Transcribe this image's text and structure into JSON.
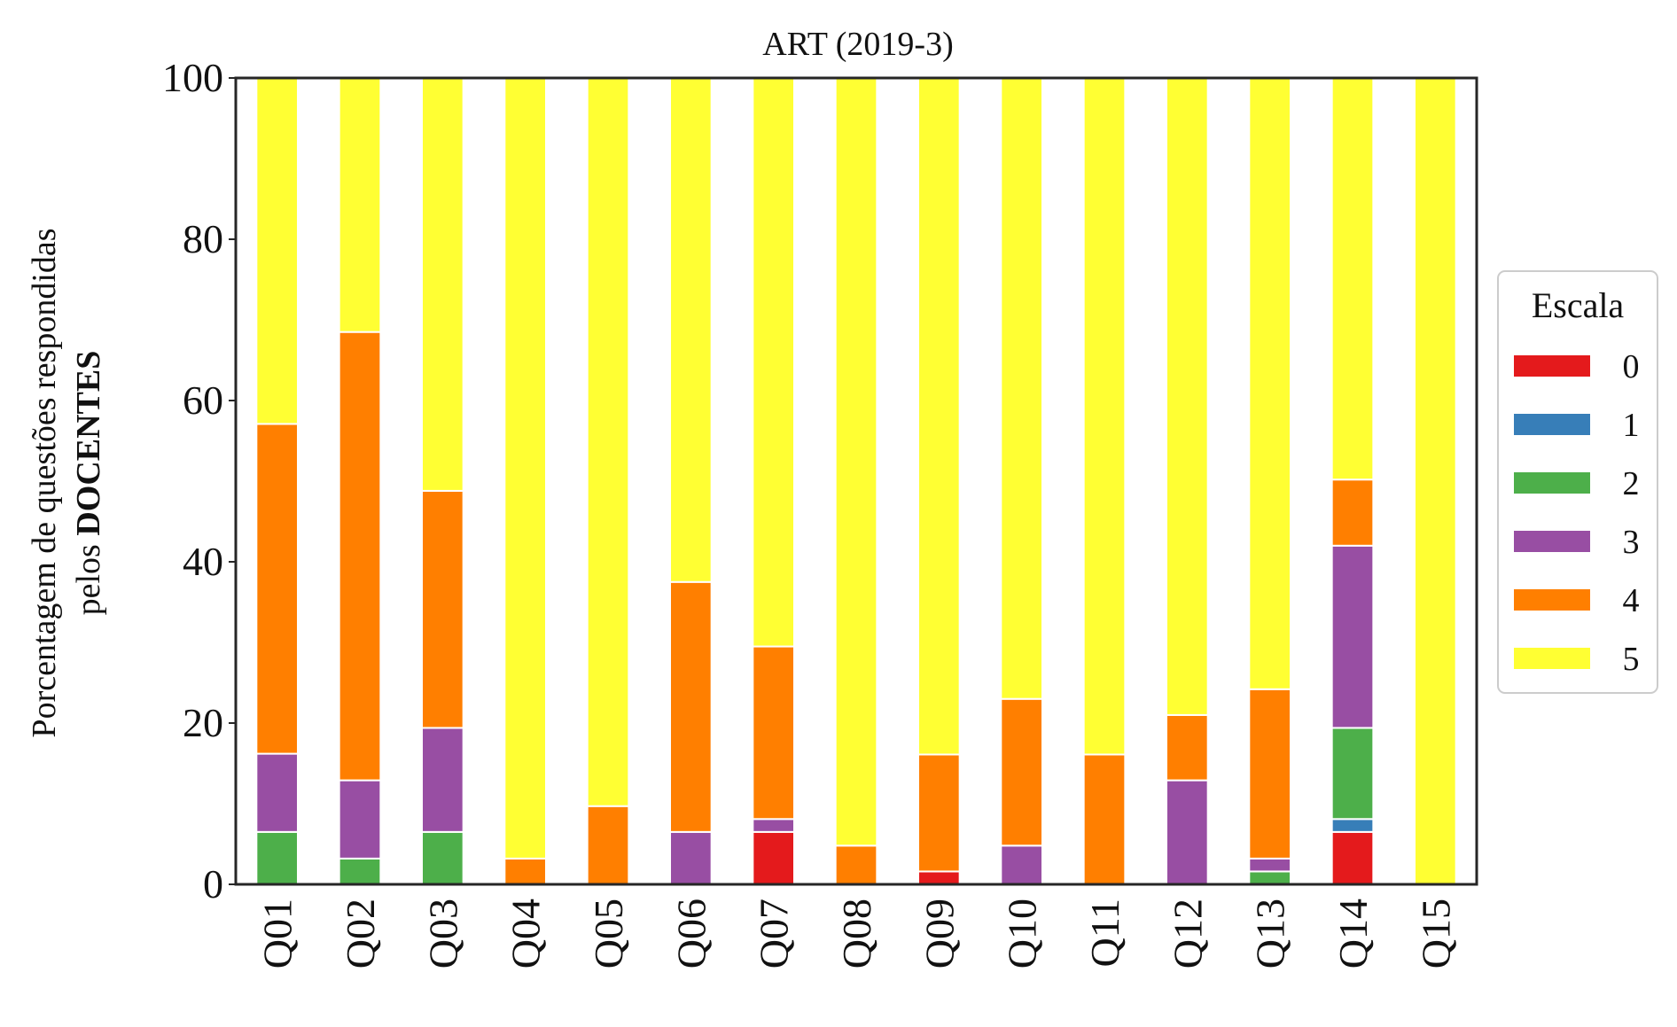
{
  "chart_data": {
    "type": "bar",
    "stacked": true,
    "title": "ART (2019-3)",
    "ylabel_line1": "Porcentagem de questões respondidas",
    "ylabel_line2_prefix": "pelos ",
    "ylabel_line2_bold": "DOCENTES",
    "xlabel": "",
    "ylim": [
      0,
      100
    ],
    "yticks": [
      0,
      20,
      40,
      60,
      80,
      100
    ],
    "grid": false,
    "legend": {
      "title": "Escala",
      "placement": "right, outside plot"
    },
    "categories": [
      "Q01",
      "Q02",
      "Q03",
      "Q04",
      "Q05",
      "Q06",
      "Q07",
      "Q08",
      "Q09",
      "Q10",
      "Q11",
      "Q12",
      "Q13",
      "Q14",
      "Q15"
    ],
    "series": [
      {
        "name": "0",
        "color": "#e41a1c",
        "values": [
          0,
          0,
          0,
          0,
          0,
          0,
          6.5,
          0,
          1.6,
          0,
          0,
          0,
          0,
          6.5,
          0
        ]
      },
      {
        "name": "1",
        "color": "#377eb8",
        "values": [
          0,
          0,
          0,
          0,
          0,
          0,
          0,
          0,
          0,
          0,
          0,
          0,
          0,
          1.6,
          0
        ]
      },
      {
        "name": "2",
        "color": "#4daf4a",
        "values": [
          6.5,
          3.2,
          6.5,
          0,
          0,
          0,
          0,
          0,
          0,
          0,
          0,
          0,
          1.6,
          11.3,
          0
        ]
      },
      {
        "name": "3",
        "color": "#984ea3",
        "values": [
          9.7,
          9.7,
          12.9,
          0,
          0,
          6.5,
          1.6,
          0,
          0,
          4.8,
          0,
          12.9,
          1.6,
          22.6,
          0
        ]
      },
      {
        "name": "4",
        "color": "#ff7f00",
        "values": [
          40.9,
          55.6,
          29.4,
          3.2,
          9.7,
          31.0,
          21.4,
          4.8,
          14.5,
          18.2,
          16.1,
          8.1,
          21.0,
          8.2,
          0
        ]
      },
      {
        "name": "5",
        "color": "#ffff33",
        "values": [
          42.9,
          31.5,
          51.2,
          96.8,
          90.3,
          62.5,
          70.5,
          95.2,
          83.9,
          77.0,
          83.9,
          79.0,
          75.8,
          49.8,
          100
        ]
      }
    ]
  }
}
